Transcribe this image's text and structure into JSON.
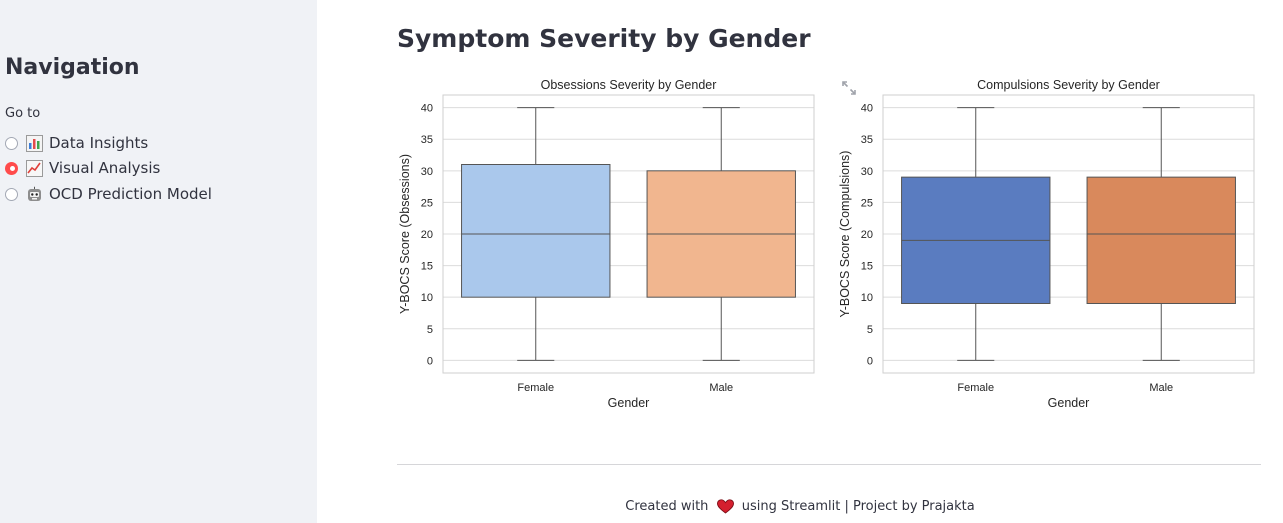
{
  "sidebar": {
    "title": "Navigation",
    "goto_label": "Go to",
    "items": [
      {
        "label": "Data Insights",
        "icon": "bar-chart-icon",
        "selected": false
      },
      {
        "label": "Visual Analysis",
        "icon": "trending-chart-icon",
        "selected": true
      },
      {
        "label": "OCD Prediction Model",
        "icon": "robot-face-icon",
        "selected": false
      }
    ]
  },
  "main": {
    "title": "Symptom Severity by Gender"
  },
  "footer": {
    "prefix": "Created with",
    "suffix": "using Streamlit | Project by Prajakta"
  },
  "chart_data": [
    {
      "type": "box",
      "title": "Obsessions Severity by Gender",
      "xlabel": "Gender",
      "ylabel": "Y-BOCS Score (Obsessions)",
      "ylim": [
        -2,
        42
      ],
      "yticks": [
        0,
        5,
        10,
        15,
        20,
        25,
        30,
        35,
        40
      ],
      "categories": [
        "Female",
        "Male"
      ],
      "boxes": [
        {
          "min": 0,
          "q1": 10,
          "median": 20,
          "q3": 31,
          "max": 40,
          "color": "#aac8ec"
        },
        {
          "min": 0,
          "q1": 10,
          "median": 20,
          "q3": 30,
          "max": 40,
          "color": "#f1b68f"
        }
      ],
      "grid": true
    },
    {
      "type": "box",
      "title": "Compulsions Severity by Gender",
      "xlabel": "Gender",
      "ylabel": "Y-BOCS Score (Compulsions)",
      "ylim": [
        -2,
        42
      ],
      "yticks": [
        0,
        5,
        10,
        15,
        20,
        25,
        30,
        35,
        40
      ],
      "categories": [
        "Female",
        "Male"
      ],
      "boxes": [
        {
          "min": 0,
          "q1": 9,
          "median": 19,
          "q3": 29,
          "max": 40,
          "color": "#5a7cc0"
        },
        {
          "min": 0,
          "q1": 9,
          "median": 20,
          "q3": 29,
          "max": 40,
          "color": "#d9895c"
        }
      ],
      "grid": true
    }
  ]
}
